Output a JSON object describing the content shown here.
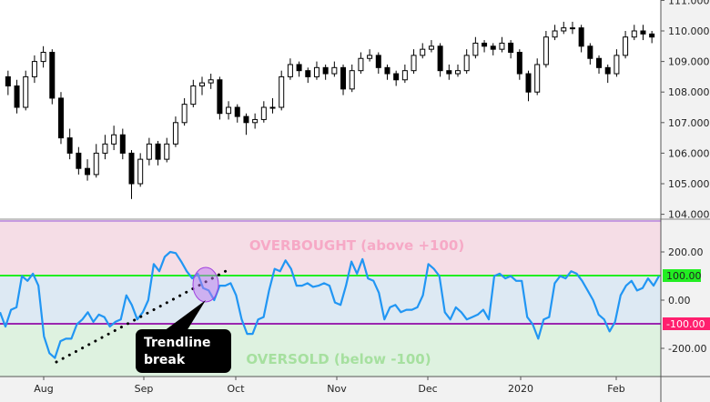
{
  "chart_data": [
    {
      "type": "candlestick",
      "ylim": [
        104,
        111
      ],
      "y_ticks": [
        "111.000",
        "110.000",
        "109.000",
        "108.000",
        "107.000",
        "106.000",
        "105.000",
        "104.000"
      ],
      "grid": false,
      "candles_ohlc": [
        [
          108.5,
          108.7,
          107.9,
          108.2
        ],
        [
          108.2,
          108.4,
          107.3,
          107.5
        ],
        [
          107.5,
          108.7,
          107.4,
          108.5
        ],
        [
          108.5,
          109.2,
          108.3,
          109.0
        ],
        [
          109.0,
          109.5,
          108.8,
          109.3
        ],
        [
          109.3,
          109.4,
          107.6,
          107.8
        ],
        [
          107.8,
          108.0,
          106.3,
          106.5
        ],
        [
          106.5,
          106.8,
          105.8,
          106.0
        ],
        [
          106.0,
          106.2,
          105.3,
          105.5
        ],
        [
          105.5,
          105.8,
          105.1,
          105.3
        ],
        [
          105.3,
          106.3,
          105.2,
          106.0
        ],
        [
          106.0,
          106.6,
          105.8,
          106.3
        ],
        [
          106.3,
          106.9,
          106.1,
          106.6
        ],
        [
          106.6,
          106.8,
          105.8,
          106.0
        ],
        [
          106.0,
          106.1,
          104.5,
          105.0
        ],
        [
          105.0,
          106.0,
          104.9,
          105.8
        ],
        [
          105.8,
          106.5,
          105.6,
          106.3
        ],
        [
          106.3,
          106.4,
          105.6,
          105.8
        ],
        [
          105.8,
          106.5,
          105.7,
          106.3
        ],
        [
          106.3,
          107.2,
          106.2,
          107.0
        ],
        [
          107.0,
          107.8,
          106.9,
          107.6
        ],
        [
          107.6,
          108.4,
          107.5,
          108.2
        ],
        [
          108.2,
          108.5,
          107.9,
          108.3
        ],
        [
          108.3,
          108.6,
          108.1,
          108.4
        ],
        [
          108.4,
          108.5,
          107.1,
          107.3
        ],
        [
          107.3,
          107.7,
          107.1,
          107.5
        ],
        [
          107.5,
          107.6,
          107.0,
          107.2
        ],
        [
          107.2,
          107.3,
          106.6,
          107.0
        ],
        [
          107.0,
          107.3,
          106.8,
          107.1
        ],
        [
          107.1,
          107.7,
          107.0,
          107.5
        ],
        [
          107.5,
          107.8,
          107.3,
          107.5
        ],
        [
          107.5,
          108.7,
          107.4,
          108.5
        ],
        [
          108.5,
          109.1,
          108.4,
          108.9
        ],
        [
          108.9,
          109.0,
          108.5,
          108.7
        ],
        [
          108.7,
          108.8,
          108.3,
          108.5
        ],
        [
          108.5,
          109.0,
          108.4,
          108.8
        ],
        [
          108.8,
          108.9,
          108.4,
          108.6
        ],
        [
          108.6,
          109.0,
          108.5,
          108.8
        ],
        [
          108.8,
          108.9,
          107.9,
          108.1
        ],
        [
          108.1,
          108.9,
          108.0,
          108.7
        ],
        [
          108.7,
          109.3,
          108.6,
          109.1
        ],
        [
          109.1,
          109.4,
          109.0,
          109.2
        ],
        [
          109.2,
          109.3,
          108.6,
          108.8
        ],
        [
          108.8,
          108.9,
          108.4,
          108.6
        ],
        [
          108.6,
          108.7,
          108.2,
          108.4
        ],
        [
          108.4,
          108.9,
          108.3,
          108.7
        ],
        [
          108.7,
          109.4,
          108.6,
          109.2
        ],
        [
          109.2,
          109.6,
          109.1,
          109.4
        ],
        [
          109.4,
          109.7,
          109.3,
          109.5
        ],
        [
          109.5,
          109.6,
          108.5,
          108.7
        ],
        [
          108.7,
          108.9,
          108.4,
          108.6
        ],
        [
          108.6,
          108.9,
          108.5,
          108.7
        ],
        [
          108.7,
          109.4,
          108.6,
          109.2
        ],
        [
          109.2,
          109.8,
          109.1,
          109.6
        ],
        [
          109.6,
          109.7,
          109.3,
          109.5
        ],
        [
          109.5,
          109.6,
          109.2,
          109.4
        ],
        [
          109.4,
          109.8,
          109.3,
          109.6
        ],
        [
          109.6,
          109.7,
          109.1,
          109.3
        ],
        [
          109.3,
          109.4,
          108.4,
          108.6
        ],
        [
          108.6,
          108.7,
          107.7,
          108.0
        ],
        [
          108.0,
          109.1,
          107.9,
          108.9
        ],
        [
          108.9,
          110.0,
          108.8,
          109.8
        ],
        [
          109.8,
          110.2,
          109.7,
          110.0
        ],
        [
          110.0,
          110.3,
          109.9,
          110.1
        ],
        [
          110.1,
          110.3,
          109.9,
          110.1
        ],
        [
          110.1,
          110.2,
          109.3,
          109.5
        ],
        [
          109.5,
          109.6,
          108.9,
          109.1
        ],
        [
          109.1,
          109.2,
          108.6,
          108.8
        ],
        [
          108.8,
          108.9,
          108.3,
          108.6
        ],
        [
          108.6,
          109.4,
          108.5,
          109.2
        ],
        [
          109.2,
          110.0,
          109.1,
          109.8
        ],
        [
          109.8,
          110.2,
          109.7,
          110.0
        ],
        [
          110.0,
          110.2,
          109.7,
          109.9
        ],
        [
          109.9,
          110.0,
          109.6,
          109.8
        ]
      ]
    },
    {
      "type": "line",
      "ylim": [
        -320,
        340
      ],
      "y_ticks": [
        "200.00",
        "0.00",
        "-200.00"
      ],
      "levels": {
        "overbought": {
          "value": 100,
          "label": "100.00",
          "color": "#22ee22"
        },
        "oversold": {
          "value": -100,
          "label": "-100.00",
          "color": "#ff1f6e"
        }
      },
      "zone_labels": {
        "overbought": "OVERBOUGHT (above  +100)",
        "oversold": "OVERSOLD (below -100)"
      },
      "x_ticks": [
        "Aug",
        "Sep",
        "Oct",
        "Nov",
        "Dec",
        "2020",
        "Feb"
      ],
      "line_color": "#2196f3",
      "values": [
        -50,
        -110,
        -40,
        -30,
        100,
        80,
        110,
        60,
        -150,
        -220,
        -240,
        -170,
        -160,
        -160,
        -100,
        -80,
        -50,
        -90,
        -60,
        -70,
        -110,
        -90,
        -80,
        20,
        -20,
        -80,
        -50,
        0,
        150,
        120,
        180,
        200,
        195,
        160,
        120,
        90,
        110,
        50,
        40,
        0,
        60,
        60,
        70,
        20,
        -80,
        -140,
        -140,
        -80,
        -70,
        40,
        130,
        120,
        165,
        130,
        60,
        60,
        70,
        55,
        60,
        70,
        60,
        -10,
        -20,
        60,
        160,
        110,
        170,
        90,
        80,
        30,
        -80,
        -30,
        -20,
        -50,
        -40,
        -40,
        -30,
        20,
        150,
        130,
        100,
        -50,
        -80,
        -30,
        -50,
        -80,
        -70,
        -60,
        -40,
        -80,
        100,
        110,
        90,
        100,
        80,
        80,
        -70,
        -100,
        -160,
        -80,
        -70,
        70,
        100,
        90,
        120,
        110,
        80,
        40,
        0,
        -60,
        -80,
        -130,
        -90,
        20,
        60,
        80,
        40,
        50,
        90,
        60,
        100
      ]
    }
  ],
  "annotation": {
    "line1": "Trendline",
    "line2": "break"
  }
}
